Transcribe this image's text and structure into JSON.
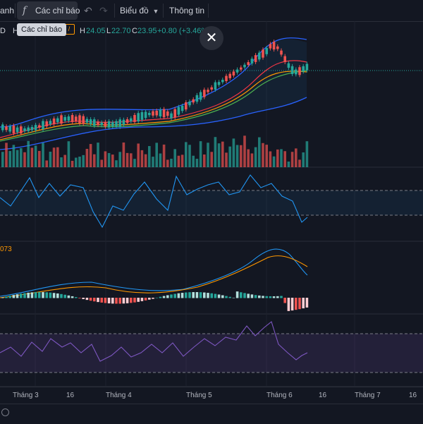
{
  "toolbar": {
    "left_cut_label": "anh",
    "indicators_label": "Các chỉ báo",
    "indicators_icon": "fx-icon",
    "undo_icon": "undo-icon",
    "redo_icon": "redo-icon",
    "chart_label": "Biểu đồ",
    "info_label": "Thông tin"
  },
  "tooltip": {
    "text": "Các chỉ báo"
  },
  "legend": {
    "symbol_cut": "D",
    "h_cut": "H",
    "h_value": "24.05",
    "l_label": "L",
    "l_value": "22.70",
    "c_label": "C",
    "c_value": "23.95",
    "change": "+0.80 (+3.46%)"
  },
  "close_icon": "close-icon",
  "macd_value_cut": "073",
  "time_axis": {
    "labels": [
      "Tháng 3",
      "16",
      "Tháng 4",
      "Tháng 5",
      "Tháng 6",
      "16",
      "Tháng 7",
      "16"
    ]
  },
  "colors": {
    "up": "#26a69a",
    "down": "#ef5350",
    "bb": "#2962ff",
    "ma_red": "#f23645",
    "ma_orange": "#ff9800",
    "ma_green": "#4caf50",
    "rsi": "#7e57c2",
    "osc": "#2196f3"
  }
}
